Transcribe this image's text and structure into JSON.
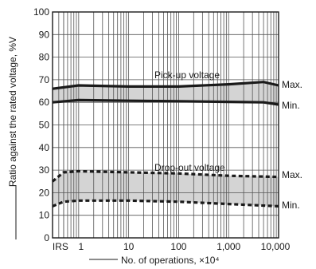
{
  "chart_data": {
    "type": "line",
    "xlabel": "No. of operations, ×10⁴",
    "ylabel": "Ratio against the rated voltage, %V",
    "x_scale": "log",
    "xlim": [
      0.3,
      10000
    ],
    "ylim": [
      0,
      100
    ],
    "grid": true,
    "x_ticks": [
      "IRS",
      "1",
      "10",
      "100",
      "1,000",
      "10,000"
    ],
    "y_ticks": [
      "0",
      "10",
      "20",
      "30",
      "40",
      "50",
      "60",
      "70",
      "80",
      "90",
      "100"
    ],
    "bands": [
      {
        "name": "Pick-up voltage",
        "upper_label": "Max.",
        "lower_label": "Min.",
        "x": [
          0.3,
          1,
          10,
          100,
          1000,
          5000,
          10000
        ],
        "upper": [
          66,
          67.5,
          67,
          67,
          68,
          69,
          67.5
        ],
        "lower": [
          60,
          61,
          60.7,
          60.5,
          60.2,
          60,
          59
        ],
        "style": "solid"
      },
      {
        "name": "Drop-out voltage",
        "upper_label": "Max.",
        "lower_label": "Min.",
        "x": [
          0.3,
          0.5,
          1,
          10,
          100,
          1000,
          10000
        ],
        "upper": [
          25,
          29,
          29.5,
          29,
          28.5,
          27.5,
          27
        ],
        "lower": [
          14,
          16,
          16.5,
          16.5,
          16,
          15,
          14
        ],
        "style": "dashed"
      }
    ]
  },
  "colors": {
    "band_fill": "#d4d4d4",
    "line": "#1a1a1a",
    "grid": "#555555"
  }
}
